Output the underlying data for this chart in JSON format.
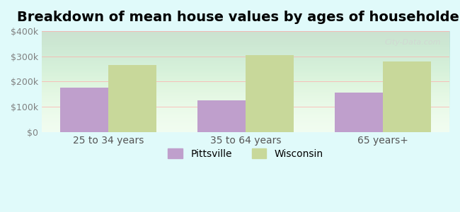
{
  "title": "Breakdown of mean house values by ages of householders",
  "categories": [
    "25 to 34 years",
    "35 to 64 years",
    "65 years+"
  ],
  "pittsville_values": [
    175000,
    125000,
    158000
  ],
  "wisconsin_values": [
    265000,
    305000,
    280000
  ],
  "pittsville_color": "#bf9fcc",
  "wisconsin_color": "#c8d89a",
  "ylim": [
    0,
    400000
  ],
  "yticks": [
    0,
    100000,
    200000,
    300000,
    400000
  ],
  "ytick_labels": [
    "$0",
    "$100k",
    "$200k",
    "$300k",
    "$400k"
  ],
  "background_color": "#e0fafa",
  "plot_bg_start": "#f0fdf0",
  "plot_bg_end": "#ffffff",
  "legend_pittsville": "Pittsville",
  "legend_wisconsin": "Wisconsin",
  "title_fontsize": 14,
  "bar_width": 0.35,
  "watermark": "City-Data.com"
}
